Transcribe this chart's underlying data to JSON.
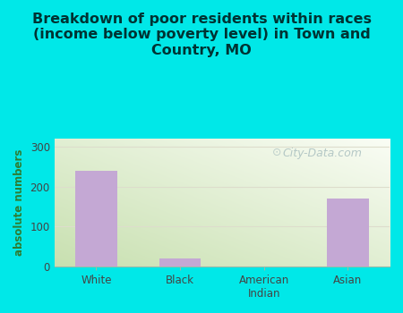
{
  "categories": [
    "White",
    "Black",
    "American\nIndian",
    "Asian"
  ],
  "values": [
    240,
    20,
    0,
    170
  ],
  "bar_color": "#c4a8d4",
  "title": "Breakdown of poor residents within races\n(income below poverty level) in Town and\nCountry, MO",
  "ylabel": "absolute numbers",
  "ylim": [
    0,
    320
  ],
  "yticks": [
    0,
    100,
    200,
    300
  ],
  "background_color": "#00e8e8",
  "plot_bg_top_right": "#e8f0e0",
  "plot_bg_bottom_left": "#c8e0b0",
  "title_fontsize": 11.5,
  "title_color": "#003333",
  "axis_label_color": "#2e7d32",
  "tick_color": "#444444",
  "watermark": "City-Data.com",
  "watermark_color": "#aac0c0",
  "grid_color": "#ddddcc"
}
